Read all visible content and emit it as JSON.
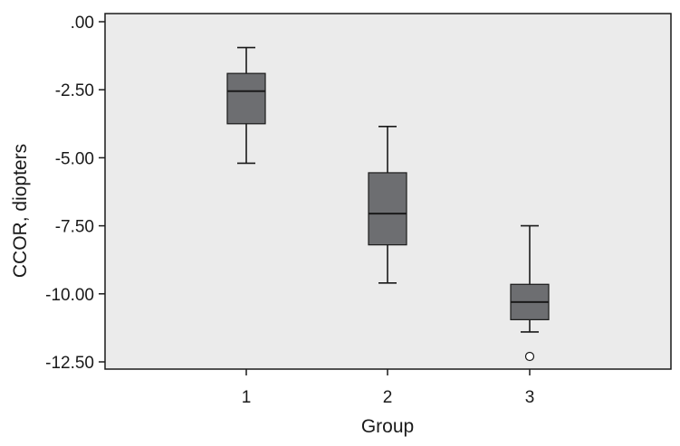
{
  "chart_data": {
    "type": "box",
    "title": "",
    "xlabel": "Group",
    "ylabel": "CCOR, diopters",
    "categories": [
      "1",
      "2",
      "3"
    ],
    "ylim": [
      -12.8,
      0.3
    ],
    "yticks": [
      {
        "value": 0,
        "label": ".00"
      },
      {
        "value": -2.5,
        "label": "-2.50"
      },
      {
        "value": -5,
        "label": "-5.00"
      },
      {
        "value": -7.5,
        "label": "-7.50"
      },
      {
        "value": -10,
        "label": "-10.00"
      },
      {
        "value": -12.5,
        "label": "-12.50"
      }
    ],
    "boxes": [
      {
        "category": "1",
        "whisker_low": -5.2,
        "q1": -3.75,
        "median": -2.55,
        "q3": -1.9,
        "whisker_high": -0.95,
        "outliers": []
      },
      {
        "category": "2",
        "whisker_low": -9.6,
        "q1": -8.2,
        "median": -7.05,
        "q3": -5.55,
        "whisker_high": -3.85,
        "outliers": []
      },
      {
        "category": "3",
        "whisker_low": -11.4,
        "q1": -10.95,
        "median": -10.3,
        "q3": -9.65,
        "whisker_high": -7.5,
        "outliers": [
          -12.3
        ]
      }
    ],
    "colors": {
      "plot_background": "#ebebeb",
      "box_fill": "#6d6e71",
      "line": "#1a1a1a"
    },
    "grid": false,
    "legend": "none"
  }
}
